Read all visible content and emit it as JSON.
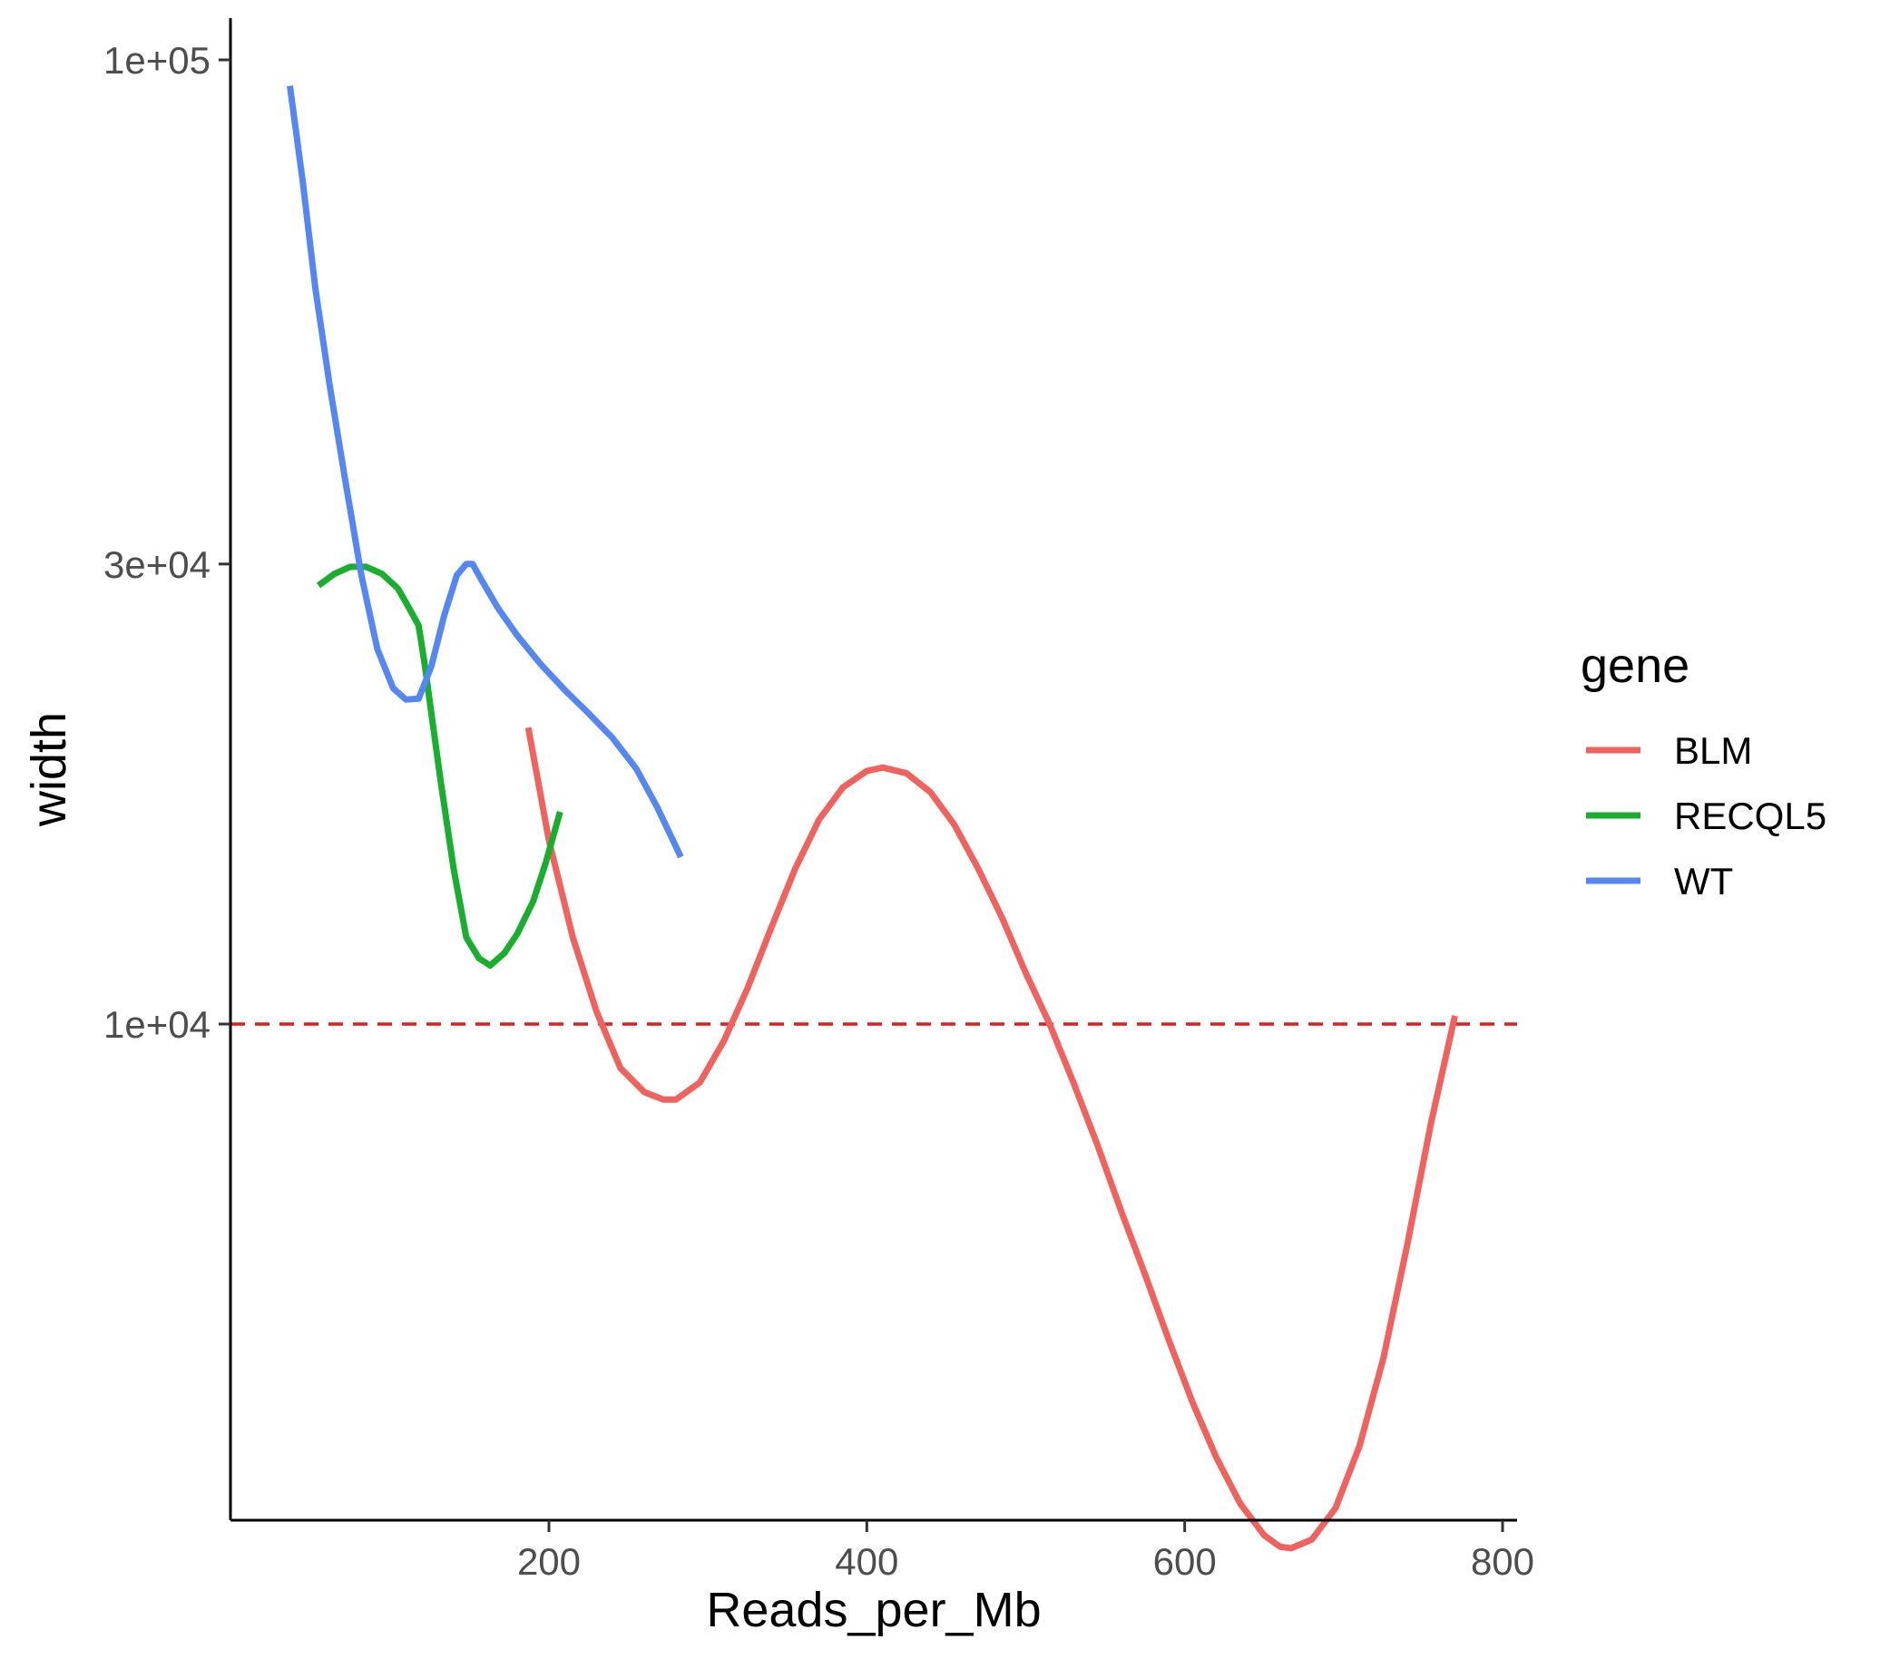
{
  "chart_data": {
    "type": "line",
    "xlabel": "Reads_per_Mb",
    "ylabel": "width",
    "x_ticks": [
      200,
      400,
      600,
      800
    ],
    "x_tick_labels": [
      "200",
      "400",
      "600",
      "800"
    ],
    "xlim": [
      0,
      800
    ],
    "y_scale": "log10",
    "y_ticks": [
      10000,
      30000,
      100000
    ],
    "y_tick_labels": [
      "1e+04",
      "3e+04",
      "1e+05"
    ],
    "ylim": [
      2700,
      100000
    ],
    "grid": false,
    "legend": {
      "title": "gene",
      "position": "right"
    },
    "reference_line": {
      "axis": "y",
      "value": 10000,
      "style": "dashed",
      "color": "#e41a1c"
    },
    "series": [
      {
        "name": "BLM",
        "color": "#F0625D",
        "points": [
          [
            187,
            20300
          ],
          [
            200,
            15500
          ],
          [
            215,
            12300
          ],
          [
            230,
            10300
          ],
          [
            245,
            9000
          ],
          [
            260,
            8500
          ],
          [
            272,
            8350
          ],
          [
            280,
            8350
          ],
          [
            295,
            8700
          ],
          [
            310,
            9600
          ],
          [
            325,
            10900
          ],
          [
            340,
            12600
          ],
          [
            355,
            14500
          ],
          [
            370,
            16300
          ],
          [
            385,
            17600
          ],
          [
            400,
            18300
          ],
          [
            410,
            18450
          ],
          [
            425,
            18200
          ],
          [
            440,
            17400
          ],
          [
            455,
            16100
          ],
          [
            470,
            14500
          ],
          [
            485,
            12900
          ],
          [
            500,
            11300
          ],
          [
            515,
            10000
          ],
          [
            530,
            8700
          ],
          [
            545,
            7500
          ],
          [
            560,
            6400
          ],
          [
            575,
            5500
          ],
          [
            590,
            4700
          ],
          [
            605,
            4050
          ],
          [
            620,
            3550
          ],
          [
            635,
            3180
          ],
          [
            650,
            2950
          ],
          [
            660,
            2870
          ],
          [
            667,
            2860
          ],
          [
            680,
            2920
          ],
          [
            695,
            3150
          ],
          [
            710,
            3650
          ],
          [
            725,
            4500
          ],
          [
            740,
            5900
          ],
          [
            755,
            7900
          ],
          [
            770,
            10200
          ]
        ]
      },
      {
        "name": "RECQL5",
        "color": "#19AE2E",
        "points": [
          [
            55,
            28500
          ],
          [
            65,
            29300
          ],
          [
            75,
            29800
          ],
          [
            85,
            29800
          ],
          [
            95,
            29300
          ],
          [
            105,
            28300
          ],
          [
            112,
            27000
          ],
          [
            118,
            25900
          ],
          [
            122,
            23500
          ],
          [
            126,
            21000
          ],
          [
            132,
            17800
          ],
          [
            140,
            14500
          ],
          [
            148,
            12300
          ],
          [
            156,
            11700
          ],
          [
            163,
            11500
          ],
          [
            172,
            11850
          ],
          [
            180,
            12400
          ],
          [
            190,
            13400
          ],
          [
            198,
            14700
          ],
          [
            207,
            16600
          ]
        ]
      },
      {
        "name": "WT",
        "color": "#5487F2",
        "points": [
          [
            37,
            94000
          ],
          [
            45,
            75000
          ],
          [
            53,
            58000
          ],
          [
            62,
            46000
          ],
          [
            72,
            36500
          ],
          [
            82,
            29200
          ],
          [
            92,
            24500
          ],
          [
            102,
            22300
          ],
          [
            110,
            21700
          ],
          [
            118,
            21750
          ],
          [
            126,
            23500
          ],
          [
            134,
            26500
          ],
          [
            142,
            29200
          ],
          [
            148,
            30000
          ],
          [
            152,
            30000
          ],
          [
            158,
            28800
          ],
          [
            168,
            27000
          ],
          [
            180,
            25300
          ],
          [
            195,
            23600
          ],
          [
            210,
            22200
          ],
          [
            225,
            21000
          ],
          [
            240,
            19800
          ],
          [
            255,
            18400
          ],
          [
            268,
            16800
          ],
          [
            283,
            14900
          ]
        ]
      }
    ]
  }
}
